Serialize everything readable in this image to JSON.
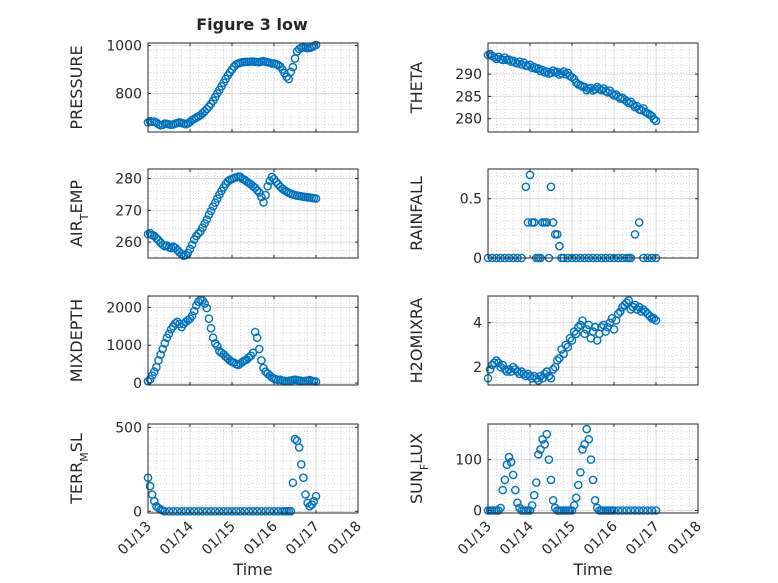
{
  "figure": {
    "title": "Figure 3 low",
    "marker_color": "#0072BD",
    "axis_color": "#262626",
    "grid_color": "#b0b0b0"
  },
  "chart_data": [
    {
      "type": "scatter",
      "ylabel_main": "PRESSURE",
      "ylabel_sub": "",
      "ylabel_tail": "",
      "xlabel": "",
      "xlim": [
        0,
        5
      ],
      "ylim": [
        640,
        1010
      ],
      "yticks": [
        800,
        1000
      ],
      "x": [
        0.0,
        0.05,
        0.1,
        0.15,
        0.2,
        0.25,
        0.3,
        0.35,
        0.4,
        0.45,
        0.5,
        0.55,
        0.6,
        0.65,
        0.7,
        0.75,
        0.8,
        0.85,
        0.9,
        0.95,
        1.0,
        1.05,
        1.1,
        1.15,
        1.2,
        1.25,
        1.3,
        1.35,
        1.4,
        1.45,
        1.5,
        1.55,
        1.6,
        1.65,
        1.7,
        1.75,
        1.8,
        1.85,
        1.9,
        1.95,
        2.0,
        2.05,
        2.1,
        2.15,
        2.2,
        2.25,
        2.3,
        2.35,
        2.4,
        2.45,
        2.5,
        2.55,
        2.6,
        2.65,
        2.7,
        2.75,
        2.8,
        2.85,
        2.9,
        2.95,
        3.0,
        3.05,
        3.1,
        3.15,
        3.2,
        3.25,
        3.3,
        3.35,
        3.4,
        3.45,
        3.5,
        3.55,
        3.6,
        3.65,
        3.7,
        3.75,
        3.8,
        3.85,
        3.9,
        3.95,
        4.0
      ],
      "y": [
        680,
        685,
        682,
        683,
        680,
        672,
        668,
        670,
        675,
        674,
        672,
        670,
        671,
        675,
        678,
        680,
        678,
        675,
        672,
        676,
        682,
        690,
        695,
        700,
        705,
        710,
        718,
        726,
        735,
        745,
        757,
        770,
        785,
        800,
        815,
        830,
        845,
        860,
        875,
        888,
        900,
        912,
        921,
        925,
        928,
        930,
        931,
        932,
        932,
        933,
        933,
        932,
        931,
        930,
        933,
        935,
        932,
        930,
        928,
        925,
        925,
        922,
        918,
        912,
        900,
        885,
        870,
        860,
        890,
        910,
        945,
        975,
        985,
        990,
        992,
        990,
        989,
        990,
        993,
        998,
        1002
      ]
    },
    {
      "type": "scatter",
      "ylabel_main": "THETA",
      "ylabel_sub": "",
      "ylabel_tail": "",
      "xlabel": "",
      "xlim": [
        0,
        5
      ],
      "ylim": [
        277,
        297
      ],
      "yticks": [
        280,
        285,
        290
      ],
      "x": [
        0.0,
        0.05,
        0.1,
        0.15,
        0.2,
        0.25,
        0.3,
        0.35,
        0.4,
        0.45,
        0.5,
        0.55,
        0.6,
        0.65,
        0.7,
        0.75,
        0.8,
        0.85,
        0.9,
        0.95,
        1.0,
        1.05,
        1.1,
        1.15,
        1.2,
        1.25,
        1.3,
        1.35,
        1.4,
        1.45,
        1.5,
        1.55,
        1.6,
        1.65,
        1.7,
        1.75,
        1.8,
        1.85,
        1.9,
        1.95,
        2.0,
        2.05,
        2.1,
        2.15,
        2.2,
        2.25,
        2.3,
        2.35,
        2.4,
        2.45,
        2.5,
        2.55,
        2.6,
        2.65,
        2.7,
        2.75,
        2.8,
        2.85,
        2.9,
        2.95,
        3.0,
        3.05,
        3.1,
        3.15,
        3.2,
        3.25,
        3.3,
        3.35,
        3.4,
        3.45,
        3.5,
        3.55,
        3.6,
        3.65,
        3.7,
        3.75,
        3.8,
        3.85,
        3.9,
        3.95,
        4.0
      ],
      "y": [
        294.3,
        294.5,
        294.1,
        293.8,
        293.4,
        293.9,
        293.4,
        293.2,
        293.7,
        293.2,
        293.3,
        292.8,
        293.0,
        292.6,
        292.4,
        292.8,
        292.2,
        292.6,
        291.9,
        291.8,
        292.1,
        291.4,
        291.6,
        291.2,
        291.3,
        290.7,
        290.9,
        290.4,
        290.6,
        290.1,
        290.3,
        290.8,
        290.4,
        290.5,
        289.9,
        290.2,
        290.6,
        290.0,
        290.3,
        289.6,
        289.3,
        288.9,
        288.1,
        287.7,
        287.5,
        287.2,
        287.1,
        286.4,
        286.7,
        286.9,
        286.3,
        286.6,
        287.1,
        286.7,
        286.4,
        286.8,
        286.2,
        285.9,
        286.3,
        285.6,
        285.2,
        285.4,
        284.9,
        284.5,
        284.7,
        284.3,
        283.9,
        283.5,
        283.8,
        283.2,
        282.6,
        282.8,
        282.1,
        281.9,
        282.3,
        281.5,
        281.2,
        280.9,
        280.6,
        279.9,
        279.5
      ]
    },
    {
      "type": "scatter",
      "ylabel_main": "AIR",
      "ylabel_sub": "T",
      "ylabel_tail": "EMP",
      "xlabel": "",
      "xlim": [
        0,
        5
      ],
      "ylim": [
        255,
        283
      ],
      "yticks": [
        260,
        270,
        280
      ],
      "x": [
        0.0,
        0.05,
        0.1,
        0.15,
        0.2,
        0.25,
        0.3,
        0.35,
        0.4,
        0.45,
        0.5,
        0.55,
        0.6,
        0.65,
        0.7,
        0.75,
        0.8,
        0.85,
        0.9,
        0.95,
        1.0,
        1.05,
        1.1,
        1.15,
        1.2,
        1.25,
        1.3,
        1.35,
        1.4,
        1.45,
        1.5,
        1.55,
        1.6,
        1.65,
        1.7,
        1.75,
        1.8,
        1.85,
        1.9,
        1.95,
        2.0,
        2.05,
        2.1,
        2.15,
        2.2,
        2.25,
        2.3,
        2.35,
        2.4,
        2.45,
        2.5,
        2.55,
        2.6,
        2.65,
        2.7,
        2.75,
        2.8,
        2.85,
        2.9,
        2.95,
        3.0,
        3.05,
        3.1,
        3.15,
        3.2,
        3.25,
        3.3,
        3.35,
        3.4,
        3.45,
        3.5,
        3.55,
        3.6,
        3.65,
        3.7,
        3.75,
        3.8,
        3.85,
        3.9,
        3.95,
        4.0
      ],
      "y": [
        262.5,
        262.8,
        262.2,
        261.9,
        261.2,
        260.6,
        259.8,
        259.2,
        258.7,
        258.9,
        258.4,
        258.1,
        258.6,
        258.2,
        257.5,
        256.8,
        256.2,
        255.7,
        255.9,
        256.6,
        257.8,
        259.2,
        260.8,
        261.9,
        262.7,
        263.4,
        264.6,
        265.9,
        267.1,
        268.6,
        269.8,
        271.2,
        272.4,
        273.7,
        274.9,
        276.1,
        277.2,
        278.3,
        279.1,
        279.6,
        279.9,
        280.2,
        280.4,
        280.6,
        280.5,
        279.9,
        279.6,
        279.1,
        278.6,
        278.2,
        277.6,
        277.1,
        276.3,
        275.6,
        274.2,
        272.5,
        274.8,
        277.6,
        279.3,
        280.5,
        279.8,
        278.9,
        278.2,
        277.4,
        276.8,
        276.3,
        275.9,
        275.5,
        275.2,
        275.0,
        274.8,
        274.6,
        274.5,
        274.4,
        274.3,
        274.2,
        274.1,
        274.0,
        273.9,
        273.8,
        273.7
      ]
    },
    {
      "type": "scatter",
      "ylabel_main": "RAINFALL",
      "ylabel_sub": "",
      "ylabel_tail": "",
      "xlabel": "",
      "xlim": [
        0,
        5
      ],
      "ylim": [
        0,
        0.75
      ],
      "yticks": [
        0,
        0.5
      ],
      "x": [
        0.0,
        0.1,
        0.2,
        0.3,
        0.4,
        0.5,
        0.6,
        0.7,
        0.8,
        0.9,
        0.95,
        1.0,
        1.05,
        1.1,
        1.15,
        1.2,
        1.25,
        1.3,
        1.35,
        1.4,
        1.45,
        1.5,
        1.55,
        1.6,
        1.65,
        1.7,
        1.75,
        1.8,
        1.9,
        2.0,
        2.1,
        2.2,
        2.3,
        2.4,
        2.5,
        2.6,
        2.7,
        2.8,
        2.9,
        3.0,
        3.1,
        3.2,
        3.3,
        3.35,
        3.4,
        3.5,
        3.6,
        3.7,
        3.8,
        3.9,
        4.0
      ],
      "y": [
        0,
        0,
        0,
        0,
        0,
        0,
        0,
        0,
        0,
        0.6,
        0.3,
        0.7,
        0.3,
        0.3,
        0,
        0,
        0,
        0.3,
        0.3,
        0.3,
        0,
        0.6,
        0.3,
        0.2,
        0.2,
        0.1,
        0,
        0,
        0,
        0,
        0,
        0,
        0,
        0,
        0,
        0,
        0,
        0,
        0,
        0,
        0,
        0,
        0,
        0,
        0,
        0.2,
        0.3,
        0,
        0,
        0,
        0
      ]
    },
    {
      "type": "scatter",
      "ylabel_main": "MIXDEPTH",
      "ylabel_sub": "",
      "ylabel_tail": "",
      "xlabel": "",
      "xlim": [
        0,
        5
      ],
      "ylim": [
        -50,
        2300
      ],
      "yticks": [
        0,
        1000,
        2000
      ],
      "x": [
        0.0,
        0.05,
        0.1,
        0.15,
        0.2,
        0.25,
        0.3,
        0.35,
        0.4,
        0.45,
        0.5,
        0.55,
        0.6,
        0.65,
        0.7,
        0.75,
        0.8,
        0.85,
        0.9,
        0.95,
        1.0,
        1.05,
        1.1,
        1.15,
        1.2,
        1.25,
        1.3,
        1.35,
        1.4,
        1.45,
        1.5,
        1.55,
        1.6,
        1.65,
        1.7,
        1.75,
        1.8,
        1.85,
        1.9,
        1.95,
        2.0,
        2.05,
        2.1,
        2.15,
        2.2,
        2.25,
        2.3,
        2.35,
        2.4,
        2.45,
        2.5,
        2.55,
        2.6,
        2.65,
        2.7,
        2.75,
        2.8,
        2.85,
        2.9,
        2.95,
        3.0,
        3.05,
        3.1,
        3.15,
        3.2,
        3.25,
        3.3,
        3.35,
        3.4,
        3.45,
        3.5,
        3.55,
        3.6,
        3.65,
        3.7,
        3.75,
        3.8,
        3.85,
        3.9,
        3.95,
        4.0
      ],
      "y": [
        50,
        100,
        200,
        300,
        420,
        600,
        750,
        900,
        1050,
        1200,
        1300,
        1420,
        1500,
        1580,
        1620,
        1560,
        1480,
        1560,
        1620,
        1660,
        1700,
        1780,
        1900,
        2050,
        2150,
        2200,
        2180,
        2100,
        1980,
        1700,
        1450,
        1200,
        1050,
        980,
        850,
        800,
        760,
        700,
        650,
        600,
        560,
        540,
        500,
        480,
        520,
        560,
        600,
        620,
        680,
        720,
        800,
        1350,
        1200,
        900,
        600,
        400,
        300,
        250,
        200,
        150,
        120,
        100,
        80,
        90,
        70,
        60,
        50,
        60,
        70,
        80,
        90,
        80,
        70,
        60,
        50,
        60,
        70,
        80,
        60,
        50,
        40
      ]
    },
    {
      "type": "scatter",
      "ylabel_main": "H2OMIXRA",
      "ylabel_sub": "",
      "ylabel_tail": "",
      "xlabel": "",
      "xlim": [
        0,
        5
      ],
      "ylim": [
        1.2,
        5.2
      ],
      "yticks": [
        2,
        4
      ],
      "x": [
        0.0,
        0.05,
        0.1,
        0.15,
        0.2,
        0.25,
        0.3,
        0.35,
        0.4,
        0.45,
        0.5,
        0.55,
        0.6,
        0.65,
        0.7,
        0.75,
        0.8,
        0.85,
        0.9,
        0.95,
        1.0,
        1.05,
        1.1,
        1.15,
        1.2,
        1.25,
        1.3,
        1.35,
        1.4,
        1.45,
        1.5,
        1.55,
        1.6,
        1.65,
        1.7,
        1.75,
        1.8,
        1.85,
        1.9,
        1.95,
        2.0,
        2.05,
        2.1,
        2.15,
        2.2,
        2.25,
        2.3,
        2.35,
        2.4,
        2.45,
        2.5,
        2.55,
        2.6,
        2.65,
        2.7,
        2.75,
        2.8,
        2.85,
        2.9,
        2.95,
        3.0,
        3.05,
        3.1,
        3.15,
        3.2,
        3.25,
        3.3,
        3.35,
        3.4,
        3.45,
        3.5,
        3.55,
        3.6,
        3.65,
        3.7,
        3.75,
        3.8,
        3.85,
        3.9,
        3.95,
        4.0
      ],
      "y": [
        1.5,
        1.9,
        2.1,
        2.2,
        2.3,
        2.2,
        2.0,
        2.1,
        1.9,
        1.8,
        1.9,
        1.8,
        2.0,
        1.9,
        1.8,
        1.7,
        1.8,
        1.7,
        1.6,
        1.7,
        1.6,
        1.5,
        1.6,
        1.5,
        1.4,
        1.6,
        1.5,
        1.7,
        1.8,
        1.6,
        1.5,
        1.9,
        2.0,
        2.3,
        2.4,
        2.8,
        2.6,
        3.0,
        2.9,
        3.3,
        3.2,
        3.6,
        3.5,
        3.8,
        3.9,
        4.1,
        3.5,
        3.7,
        3.9,
        3.3,
        3.6,
        3.8,
        3.2,
        3.5,
        3.8,
        3.9,
        3.6,
        3.8,
        4.0,
        4.2,
        3.7,
        4.1,
        4.4,
        4.5,
        4.7,
        4.8,
        4.9,
        5.0,
        4.6,
        4.7,
        4.8,
        4.6,
        4.7,
        4.5,
        4.6,
        4.5,
        4.4,
        4.3,
        4.2,
        4.2,
        4.1
      ]
    },
    {
      "type": "scatter",
      "ylabel_main": "TERR",
      "ylabel_sub": "M",
      "ylabel_tail": "SL",
      "xlabel": "Time",
      "xlim": [
        0,
        5
      ],
      "ylim": [
        -10,
        520
      ],
      "yticks": [
        0,
        500
      ],
      "x": [
        0.0,
        0.05,
        0.1,
        0.15,
        0.2,
        0.25,
        0.3,
        0.35,
        0.4,
        0.5,
        0.6,
        0.7,
        0.8,
        0.9,
        1.0,
        1.1,
        1.2,
        1.3,
        1.4,
        1.5,
        1.6,
        1.7,
        1.8,
        1.9,
        2.0,
        2.1,
        2.2,
        2.3,
        2.4,
        2.5,
        2.6,
        2.7,
        2.8,
        2.9,
        3.0,
        3.1,
        3.2,
        3.25,
        3.3,
        3.35,
        3.4,
        3.45,
        3.5,
        3.55,
        3.6,
        3.65,
        3.7,
        3.75,
        3.8,
        3.85,
        3.9,
        3.95,
        4.0
      ],
      "y": [
        200,
        150,
        100,
        60,
        30,
        20,
        10,
        5,
        0,
        0,
        0,
        0,
        0,
        0,
        0,
        0,
        0,
        0,
        0,
        0,
        0,
        0,
        0,
        0,
        0,
        0,
        0,
        0,
        0,
        0,
        0,
        0,
        0,
        0,
        0,
        0,
        0,
        0,
        0,
        0,
        0,
        170,
        430,
        420,
        380,
        280,
        200,
        100,
        50,
        30,
        40,
        60,
        90
      ]
    },
    {
      "type": "scatter",
      "ylabel_main": "SUN",
      "ylabel_sub": "F",
      "ylabel_tail": "LUX",
      "xlabel": "Time",
      "xlim": [
        0,
        5
      ],
      "ylim": [
        -5,
        170
      ],
      "yticks": [
        0,
        100
      ],
      "x": [
        0.0,
        0.05,
        0.1,
        0.15,
        0.2,
        0.25,
        0.3,
        0.35,
        0.4,
        0.45,
        0.5,
        0.55,
        0.6,
        0.65,
        0.7,
        0.75,
        0.8,
        0.85,
        0.9,
        0.95,
        1.0,
        1.05,
        1.1,
        1.15,
        1.2,
        1.25,
        1.3,
        1.35,
        1.4,
        1.45,
        1.5,
        1.55,
        1.6,
        1.65,
        1.7,
        1.75,
        1.8,
        1.85,
        1.9,
        1.95,
        2.0,
        2.05,
        2.1,
        2.15,
        2.2,
        2.25,
        2.3,
        2.35,
        2.4,
        2.45,
        2.5,
        2.55,
        2.6,
        2.65,
        2.7,
        2.75,
        2.8,
        2.85,
        2.9,
        2.95,
        3.0,
        3.1,
        3.2,
        3.3,
        3.4,
        3.5,
        3.6,
        3.7,
        3.8,
        3.9,
        4.0
      ],
      "y": [
        0,
        0,
        0,
        0,
        0,
        0,
        5,
        40,
        60,
        90,
        105,
        95,
        70,
        40,
        15,
        5,
        0,
        0,
        0,
        0,
        0,
        10,
        30,
        55,
        110,
        120,
        140,
        130,
        150,
        100,
        60,
        20,
        5,
        0,
        0,
        0,
        0,
        0,
        0,
        0,
        0,
        10,
        25,
        50,
        75,
        120,
        130,
        160,
        140,
        100,
        60,
        20,
        5,
        0,
        0,
        0,
        0,
        0,
        0,
        0,
        0,
        0,
        0,
        0,
        0,
        0,
        0,
        0,
        0,
        0,
        0
      ]
    }
  ],
  "x_tick_labels": [
    "01/13",
    "01/14",
    "01/15",
    "01/16",
    "01/17",
    "01/18"
  ]
}
